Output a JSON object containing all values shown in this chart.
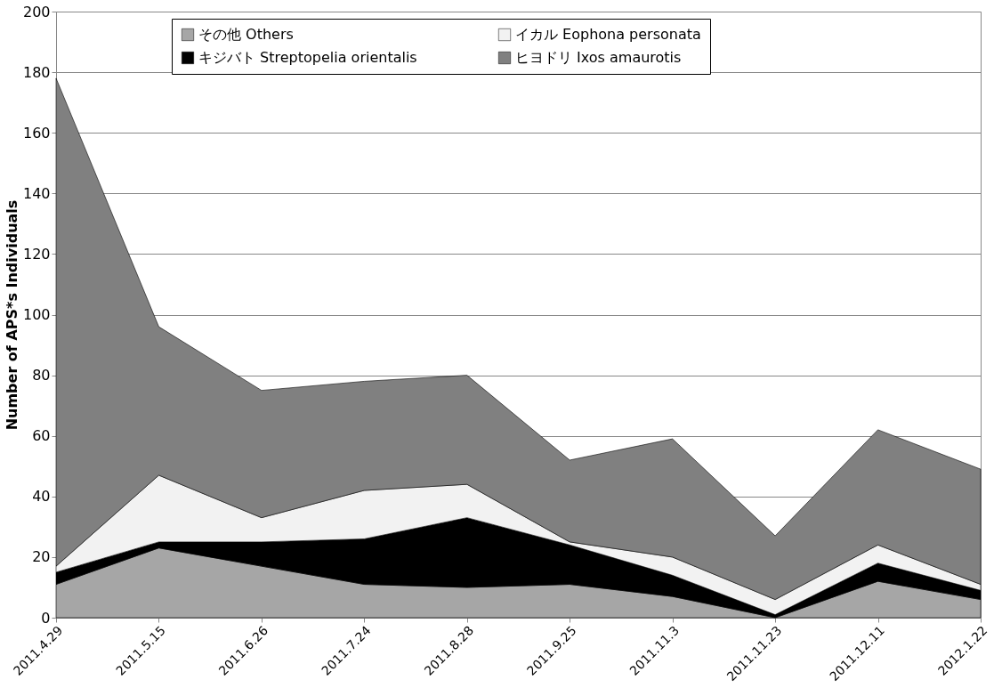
{
  "chart_data": {
    "type": "area",
    "stacked": true,
    "ylabel": "Number of APS*s Individuals",
    "categories": [
      "2011.4.29",
      "2011.5.15",
      "2011.6.26",
      "2011.7.24",
      "2011.8.28",
      "2011.9.25",
      "2011.11.3",
      "2011.11.23",
      "2011.12.11",
      "2012.1.22"
    ],
    "series": [
      {
        "name": "その他 Others",
        "color": "#a6a6a6",
        "values": [
          11,
          23,
          17,
          11,
          10,
          11,
          7,
          0,
          12,
          6
        ]
      },
      {
        "name": "キジバト Streptopelia orientalis",
        "color": "#000000",
        "values": [
          4,
          2,
          8,
          15,
          23,
          13,
          7,
          1,
          6,
          3
        ]
      },
      {
        "name": "イカル Eophona personata",
        "color": "#f2f2f2",
        "values": [
          2,
          22,
          8,
          16,
          11,
          1,
          6,
          5,
          6,
          2
        ]
      },
      {
        "name": "ヒヨドリ Ixos amaurotis",
        "color": "#808080",
        "values": [
          161,
          49,
          42,
          36,
          36,
          27,
          39,
          21,
          38,
          38
        ]
      }
    ],
    "ylim": [
      0,
      200
    ],
    "yticks": [
      0,
      20,
      40,
      60,
      80,
      100,
      120,
      140,
      160,
      180,
      200
    ],
    "grid": "y",
    "legend": "top"
  }
}
